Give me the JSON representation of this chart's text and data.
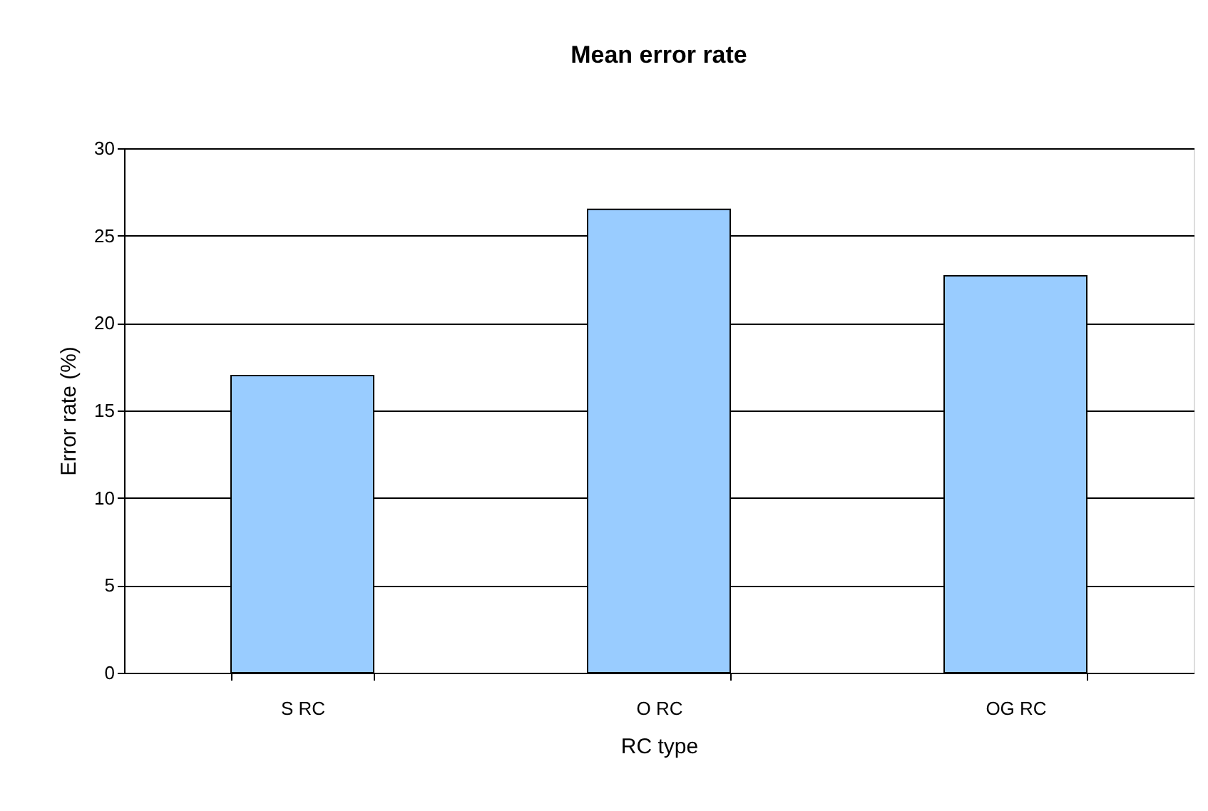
{
  "chart_data": {
    "type": "bar",
    "title": "Mean error rate",
    "xlabel": "RC type",
    "ylabel": "Error rate (%)",
    "categories": [
      "S RC",
      "O RC",
      "OG RC"
    ],
    "values": [
      17.0,
      26.5,
      22.7
    ],
    "color": "#99ccff",
    "ylim": [
      0,
      30
    ],
    "yticks": [
      0,
      5,
      10,
      15,
      20,
      25,
      30
    ],
    "grid": "y"
  }
}
